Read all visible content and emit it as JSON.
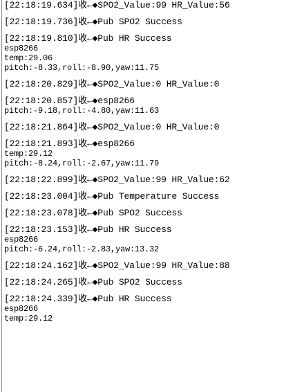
{
  "log": {
    "entries": [
      {
        "header": "[22:18:19.634]收←◆SPO2_Value:99 HR_Value:56",
        "lines": []
      },
      {
        "header": "[22:18:19.736]收←◆Pub SPO2 Success",
        "lines": []
      },
      {
        "header": "[22:18:19.810]收←◆Pub HR Success",
        "lines": [
          "esp8266",
          "temp:29.06",
          "pitch:-8.33,roll:-8.90,yaw:11.75"
        ]
      },
      {
        "header": "[22:18:20.829]收←◆SPO2_Value:0 HR_Value:0",
        "lines": []
      },
      {
        "header": "[22:18:20.857]收←◆esp8266",
        "lines": [
          "pitch:-9.18,roll:-4.80,yaw:11.63"
        ]
      },
      {
        "header": "[22:18:21.864]收←◆SPO2_Value:0 HR_Value:0",
        "lines": []
      },
      {
        "header": "[22:18:21.893]收←◆esp8266",
        "lines": [
          "temp:29.12",
          "pitch:-8.24,roll:-2.67,yaw:11.79"
        ]
      },
      {
        "header": "[22:18:22.899]收←◆SPO2_Value:99 HR_Value:62",
        "lines": []
      },
      {
        "header": "[22:18:23.004]收←◆Pub Temperature Success",
        "lines": []
      },
      {
        "header": "[22:18:23.078]收←◆Pub SPO2 Success",
        "lines": []
      },
      {
        "header": "[22:18:23.153]收←◆Pub HR Success",
        "lines": [
          "esp8266",
          "pitch:-6.24,roll:-2.83,yaw:13.32"
        ]
      },
      {
        "header": "[22:18:24.162]收←◆SPO2_Value:99 HR_Value:88",
        "lines": []
      },
      {
        "header": "[22:18:24.265]收←◆Pub SPO2 Success",
        "lines": []
      },
      {
        "header": "[22:18:24.339]收←◆Pub HR Success",
        "lines": [
          "esp8266",
          "temp:29.12"
        ]
      }
    ]
  }
}
